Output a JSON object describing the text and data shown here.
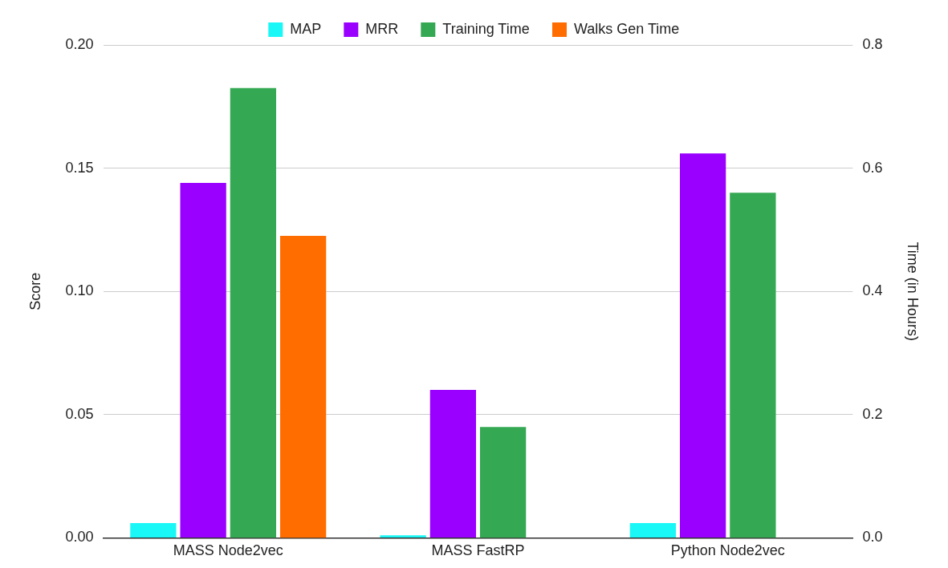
{
  "chart_data": {
    "type": "bar",
    "categories": [
      "MASS Node2vec",
      "MASS FastRP",
      "Python Node2vec"
    ],
    "series": [
      {
        "name": "MAP",
        "color": "#19f7f7",
        "values": [
          0.006,
          0.001,
          0.006
        ]
      },
      {
        "name": "MRR",
        "color": "#9900ff",
        "values": [
          0.144,
          0.06,
          0.156
        ]
      },
      {
        "name": "Training Time",
        "color": "#34a853",
        "values": [
          0.73,
          0.18,
          0.56
        ],
        "axis": "y2"
      },
      {
        "name": "Walks Gen Time",
        "color": "#ff6d01",
        "values": [
          0.49,
          null,
          null
        ],
        "axis": "y2"
      }
    ],
    "ylabel": "Score",
    "y2label": "Time (in Hours)",
    "ylim": [
      0,
      0.2
    ],
    "yticks": [
      {
        "value": 0,
        "label": "0.00"
      },
      {
        "value": 0.05,
        "label": "0.05"
      },
      {
        "value": 0.1,
        "label": "0.10"
      },
      {
        "value": 0.15,
        "label": "0.15"
      },
      {
        "value": 0.2,
        "label": "0.20"
      }
    ],
    "y2lim": [
      0,
      0.8
    ],
    "y2ticks": [
      {
        "value": 0,
        "label": "0.0"
      },
      {
        "value": 0.2,
        "label": "0.2"
      },
      {
        "value": 0.4,
        "label": "0.4"
      },
      {
        "value": 0.6,
        "label": "0.6"
      },
      {
        "value": 0.8,
        "label": "0.8"
      }
    ],
    "grid": "y",
    "legend": "top"
  }
}
